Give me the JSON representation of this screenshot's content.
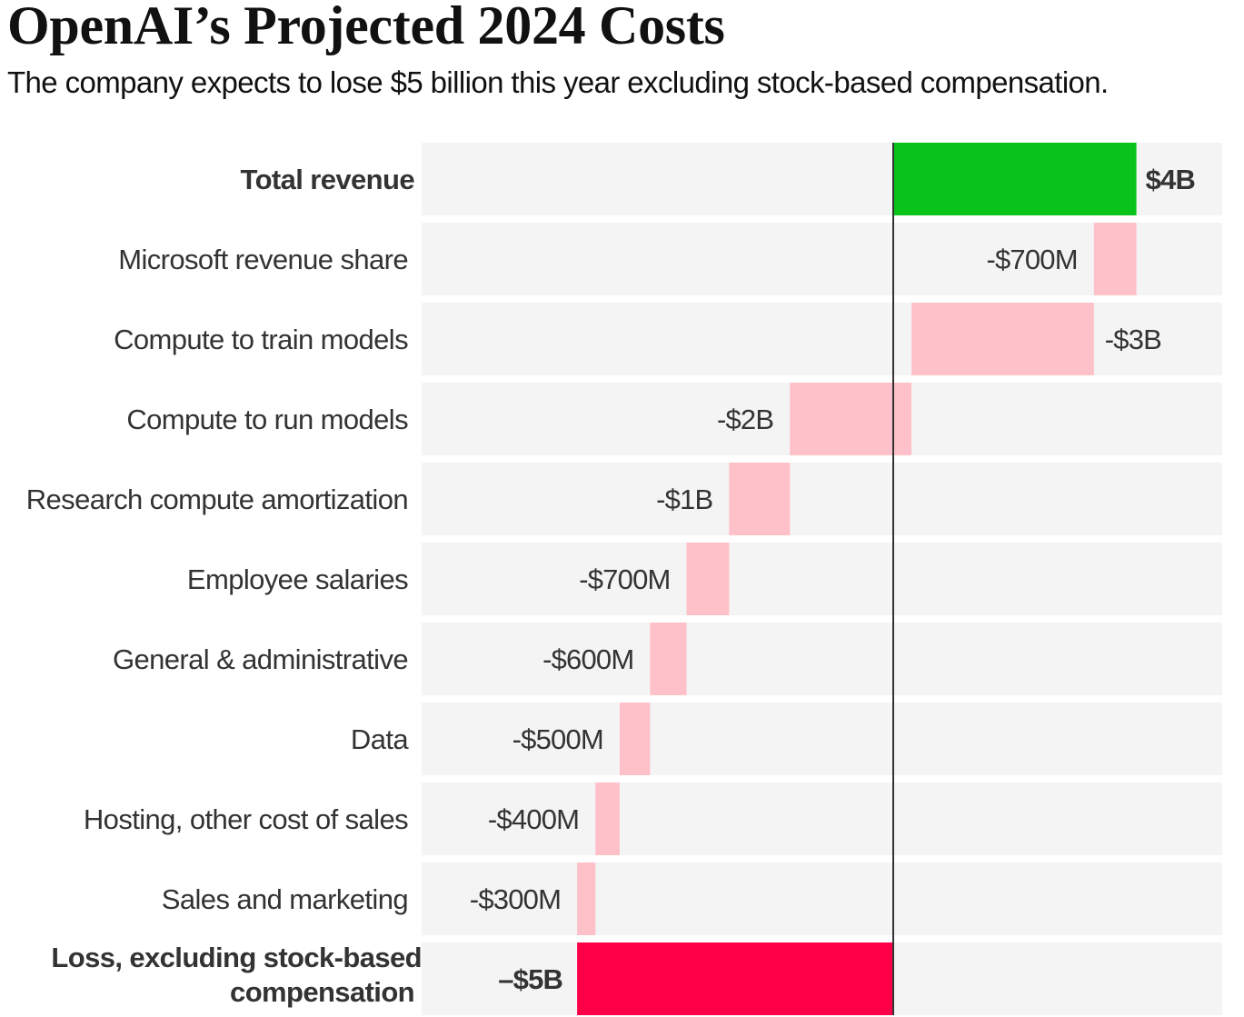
{
  "header": {
    "title": "OpenAI’s Projected 2024 Costs",
    "subtitle": "The company expects to lose $5 billion this year excluding stock-based compensation."
  },
  "colors": {
    "revenue": "#08c41a",
    "cost": "#ffc1c9",
    "loss": "#ff0048",
    "row_background": "#f4f4f4",
    "zero_line": "#333333",
    "text": "#333333"
  },
  "chart_data": {
    "type": "bar",
    "subtype": "waterfall",
    "orientation": "horizontal",
    "title": "OpenAI’s Projected 2024 Costs",
    "subtitle": "The company expects to lose $5 billion this year excluding stock-based compensation.",
    "units": "billions USD",
    "xlabel": "",
    "ylabel": "",
    "grid": false,
    "legend": "none",
    "xlim": [
      -5.2,
      4.0
    ],
    "categories": [
      "Total revenue",
      "Microsoft revenue share",
      "Compute to train models",
      "Compute to run models",
      "Research compute amortization",
      "Employee salaries",
      "General & administrative",
      "Data",
      "Hosting, other cost of sales",
      "Sales and marketing",
      "Loss, excluding stock-based compensation"
    ],
    "rows": [
      {
        "label": "Total revenue",
        "kind": "total",
        "value": 4.0,
        "start": 0,
        "end": 4.0,
        "value_label": "$4B",
        "bold": true
      },
      {
        "label": "Microsoft revenue share",
        "kind": "cost",
        "value": -0.7,
        "start": 4.0,
        "end": 3.3,
        "value_label": "-$700M",
        "bold": false
      },
      {
        "label": "Compute to train models",
        "kind": "cost",
        "value": -3.0,
        "start": 3.3,
        "end": 0.3,
        "value_label": "-$3B",
        "bold": false
      },
      {
        "label": "Compute to run models",
        "kind": "cost",
        "value": -2.0,
        "start": 0.3,
        "end": -1.7,
        "value_label": "-$2B",
        "bold": false
      },
      {
        "label": "Research compute amortization",
        "kind": "cost",
        "value": -1.0,
        "start": -1.7,
        "end": -2.7,
        "value_label": "-$1B",
        "bold": false
      },
      {
        "label": "Employee salaries",
        "kind": "cost",
        "value": -0.7,
        "start": -2.7,
        "end": -3.4,
        "value_label": "-$700M",
        "bold": false
      },
      {
        "label": "General & administrative",
        "kind": "cost",
        "value": -0.6,
        "start": -3.4,
        "end": -4.0,
        "value_label": "-$600M",
        "bold": false
      },
      {
        "label": "Data",
        "kind": "cost",
        "value": -0.5,
        "start": -4.0,
        "end": -4.5,
        "value_label": "-$500M",
        "bold": false
      },
      {
        "label": "Hosting, other cost of sales",
        "kind": "cost",
        "value": -0.4,
        "start": -4.5,
        "end": -4.9,
        "value_label": "-$400M",
        "bold": false
      },
      {
        "label": "Sales and marketing",
        "kind": "cost",
        "value": -0.3,
        "start": -4.9,
        "end": -5.2,
        "value_label": "-$300M",
        "bold": false
      },
      {
        "label": "Loss, excluding stock-based compensation",
        "label_lines": [
          "Loss, excluding stock-based",
          "compensation"
        ],
        "kind": "loss",
        "value": -5.2,
        "start": 0,
        "end": -5.2,
        "value_label": "–$5B",
        "bold": true
      }
    ]
  }
}
